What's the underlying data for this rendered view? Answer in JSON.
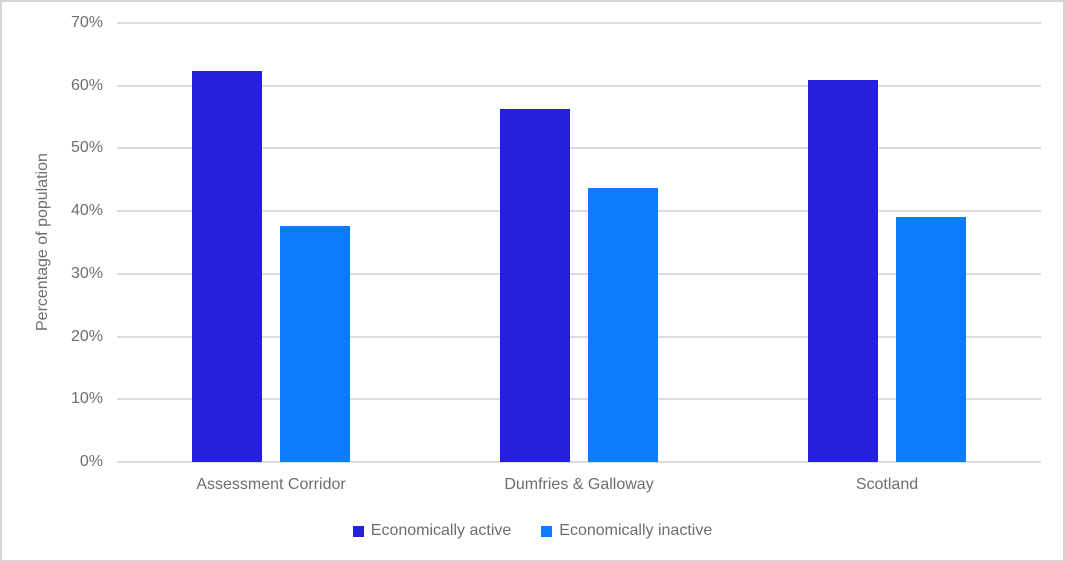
{
  "chart_data": {
    "type": "bar",
    "title": "",
    "ylabel": "Percentage of population",
    "categories": [
      "Assessment Corridor",
      "Dumfries & Galloway",
      "Scotland"
    ],
    "series": [
      {
        "name": "Economically active",
        "color": "#2420dc",
        "values": [
          62.3,
          56.3,
          60.9
        ]
      },
      {
        "name": "Economically inactive",
        "color": "#0b7dfa",
        "values": [
          37.7,
          43.7,
          39.1
        ]
      }
    ],
    "ylim": [
      0,
      70
    ],
    "yticks": [
      0,
      10,
      20,
      30,
      40,
      50,
      60,
      70
    ],
    "ytick_labels": [
      "0%",
      "10%",
      "20%",
      "30%",
      "40%",
      "50%",
      "60%",
      "70%"
    ],
    "grid": true,
    "legend_position": "bottom"
  },
  "style": {
    "gridline_color": "#dcdcdc",
    "axis_text_color": "#6e6e6e",
    "background": "#ffffff",
    "border_color": "#d6d6d6"
  }
}
